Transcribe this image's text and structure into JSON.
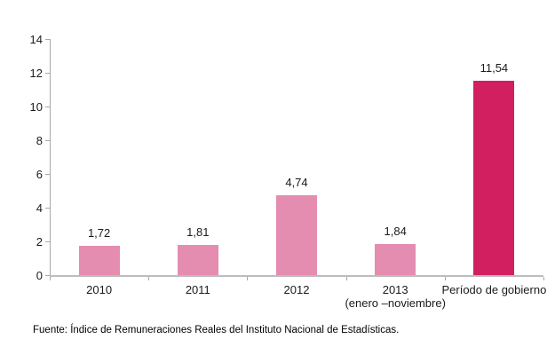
{
  "chart_data": {
    "type": "bar",
    "categories": [
      "2010",
      "2011",
      "2012",
      "2013",
      "Período de gobierno"
    ],
    "category_sublabels": [
      "",
      "",
      "",
      "(enero –noviembre)",
      ""
    ],
    "values": [
      1.72,
      1.81,
      4.74,
      1.84,
      11.54
    ],
    "value_labels": [
      "1,72",
      "1,81",
      "4,74",
      "1,84",
      "11,54"
    ],
    "bar_colors": [
      "#e58cb1",
      "#e58cb1",
      "#e58cb1",
      "#e58cb1",
      "#d21f5f"
    ],
    "title": "",
    "xlabel": "",
    "ylabel": "",
    "ylim": [
      0,
      14
    ],
    "y_ticks": [
      0,
      2,
      4,
      6,
      8,
      10,
      12,
      14
    ],
    "grid": "off",
    "legend": "none",
    "colors": {
      "light_bar": "#e58cb1",
      "dark_bar": "#d21f5f",
      "axis": "#a8a8a8",
      "text": "#1a1a1a"
    }
  },
  "footer": {
    "source_text": "Fuente: Índice de Remuneraciones Reales del Instituto Nacional de Estadísticas."
  }
}
